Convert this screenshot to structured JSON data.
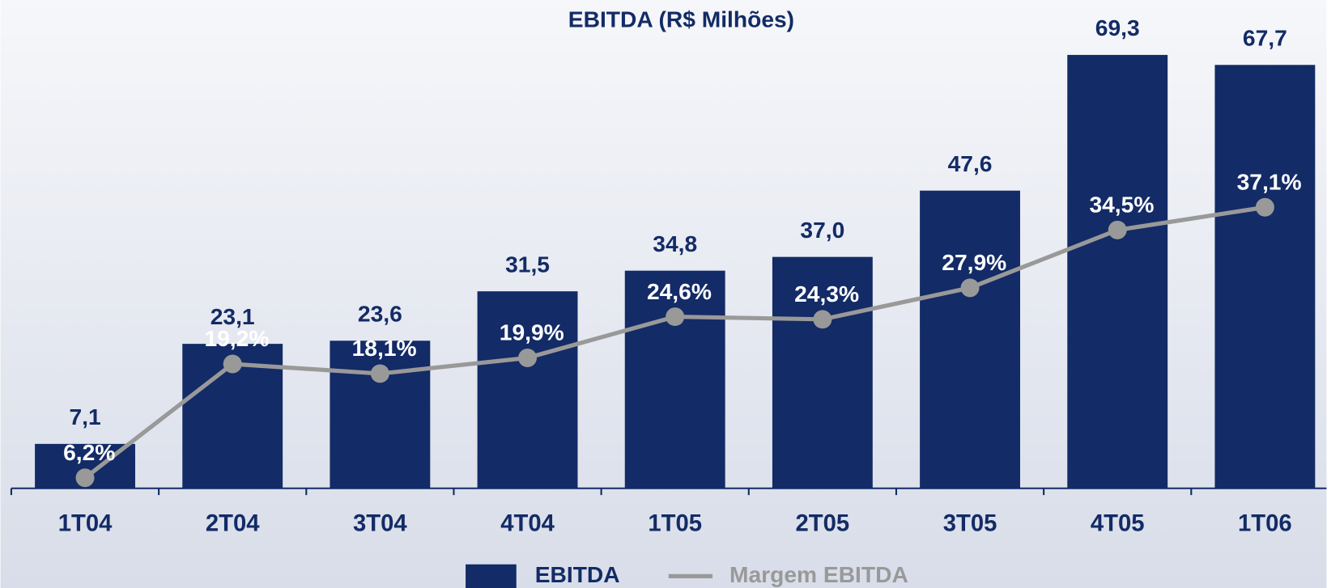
{
  "chart_data": {
    "type": "bar",
    "title": "EBITDA (R$ Milhões)",
    "categories": [
      "1T04",
      "2T04",
      "3T04",
      "4T04",
      "1T05",
      "2T05",
      "3T05",
      "4T05",
      "1T06"
    ],
    "series": [
      {
        "name": "EBITDA",
        "color": "#132b66",
        "type": "bar",
        "values": [
          7.1,
          23.1,
          23.6,
          31.5,
          34.8,
          37.0,
          47.6,
          69.3,
          67.7
        ],
        "value_labels": [
          "7,1",
          "23,1",
          "23,6",
          "31,5",
          "34,8",
          "37,0",
          "47,6",
          "69,3",
          "67,7"
        ]
      },
      {
        "name": "Margem EBITDA",
        "color": "#999999",
        "type": "line",
        "axis": "y2",
        "values": [
          6.2,
          19.2,
          18.1,
          19.9,
          24.6,
          24.3,
          27.9,
          34.5,
          37.1
        ],
        "value_labels": [
          "6,2%",
          "19,2%",
          "18,1%",
          "19,9%",
          "24,6%",
          "24,3%",
          "27,9%",
          "34,5%",
          "37,1%"
        ]
      }
    ],
    "ylim": [
      0,
      77
    ],
    "y2lim": [
      5,
      60
    ]
  }
}
